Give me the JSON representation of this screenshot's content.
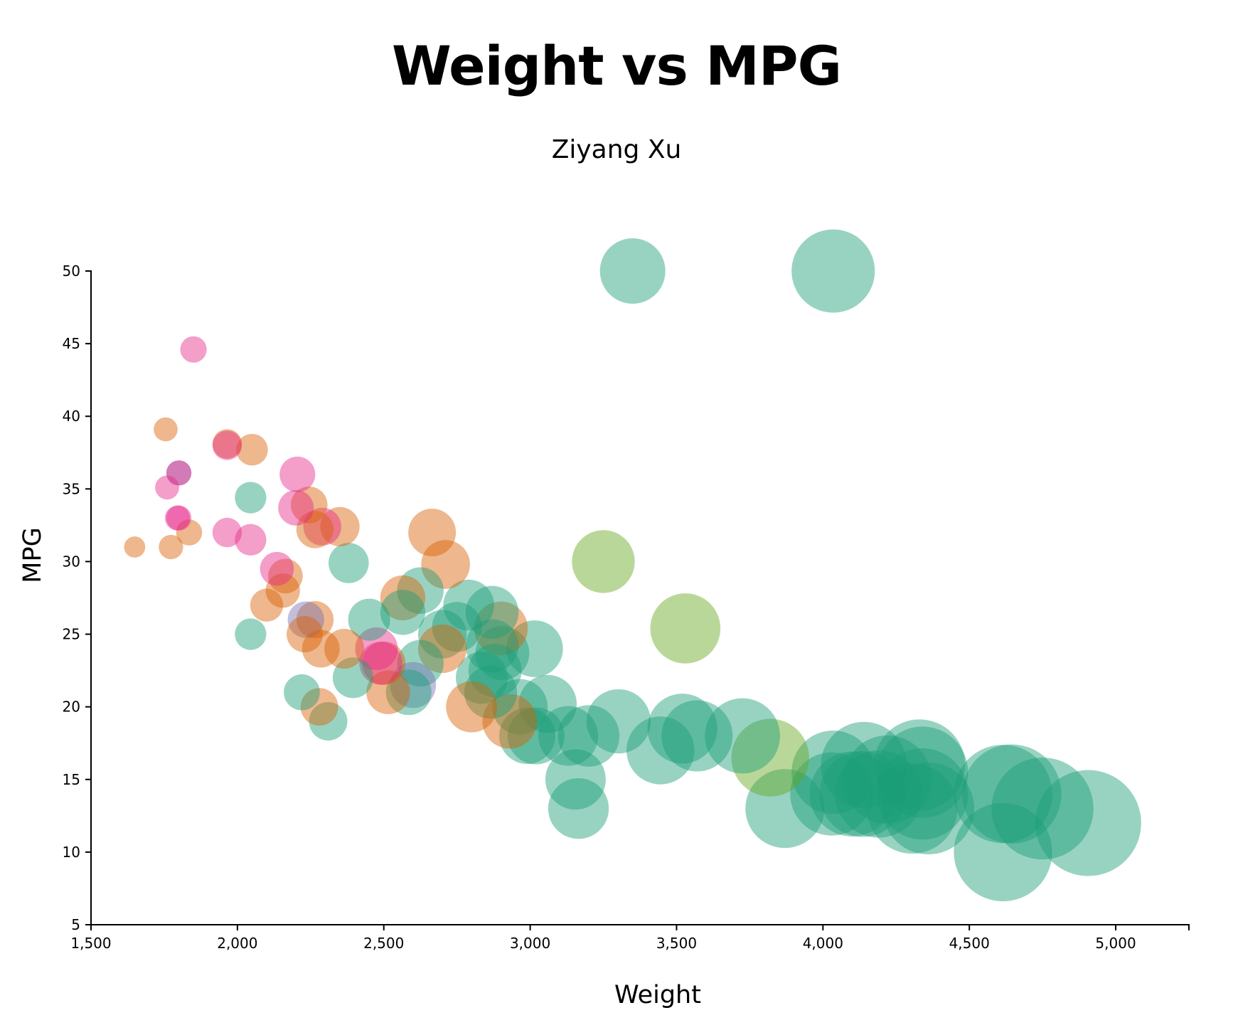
{
  "chart_data": {
    "type": "scatter",
    "title": "Weight vs MPG",
    "subtitle": "Ziyang Xu",
    "xlabel": "Weight",
    "ylabel": "MPG",
    "xlim": [
      1500,
      5250
    ],
    "ylim": [
      5,
      50
    ],
    "x_ticks": [
      1500,
      2000,
      2500,
      3000,
      3500,
      4000,
      4500,
      5000
    ],
    "y_ticks": [
      5,
      10,
      15,
      20,
      25,
      30,
      35,
      40,
      45,
      50
    ],
    "x_tick_labels": [
      "1,500",
      "2,000",
      "2,500",
      "3,000",
      "3,500",
      "4,000",
      "4,500",
      "5,000"
    ],
    "y_tick_labels": [
      "5",
      "10",
      "15",
      "20",
      "25",
      "30",
      "35",
      "40",
      "45",
      "50"
    ],
    "grid": false,
    "legend": "none",
    "bubble_size_encodes": "weight",
    "colors": {
      "green": "#1b9e77",
      "orange": "#d95f02",
      "purple": "#7570b3",
      "pink": "#e7298a",
      "lime": "#66a61e"
    },
    "points": [
      {
        "x": 3350,
        "y": 50,
        "c": "green"
      },
      {
        "x": 4035,
        "y": 50,
        "c": "green"
      },
      {
        "x": 1850,
        "y": 44.6,
        "c": "pink"
      },
      {
        "x": 1755,
        "y": 39.1,
        "c": "orange"
      },
      {
        "x": 1965,
        "y": 38.1,
        "c": "orange"
      },
      {
        "x": 1965,
        "y": 38,
        "c": "pink"
      },
      {
        "x": 2050,
        "y": 37.7,
        "c": "orange"
      },
      {
        "x": 1800,
        "y": 36.1,
        "c": "purple"
      },
      {
        "x": 1800,
        "y": 36.1,
        "c": "pink"
      },
      {
        "x": 2205,
        "y": 36,
        "c": "pink"
      },
      {
        "x": 1760,
        "y": 35.1,
        "c": "pink"
      },
      {
        "x": 2045,
        "y": 34.4,
        "c": "green"
      },
      {
        "x": 2245,
        "y": 33.9,
        "c": "orange"
      },
      {
        "x": 2200,
        "y": 33.7,
        "c": "pink"
      },
      {
        "x": 1795,
        "y": 33,
        "c": "pink"
      },
      {
        "x": 1800,
        "y": 33,
        "c": "pink"
      },
      {
        "x": 2350,
        "y": 32.4,
        "c": "orange"
      },
      {
        "x": 2290,
        "y": 32.4,
        "c": "pink"
      },
      {
        "x": 2265,
        "y": 32.2,
        "c": "orange"
      },
      {
        "x": 1835,
        "y": 32,
        "c": "orange"
      },
      {
        "x": 1965,
        "y": 32,
        "c": "pink"
      },
      {
        "x": 2665,
        "y": 32,
        "c": "orange"
      },
      {
        "x": 2045,
        "y": 31.5,
        "c": "pink"
      },
      {
        "x": 1649,
        "y": 31,
        "c": "orange"
      },
      {
        "x": 1773,
        "y": 31,
        "c": "orange"
      },
      {
        "x": 3250,
        "y": 30,
        "c": "lime"
      },
      {
        "x": 2380,
        "y": 29.9,
        "c": "green"
      },
      {
        "x": 2711,
        "y": 29.8,
        "c": "orange"
      },
      {
        "x": 2135,
        "y": 29.5,
        "c": "pink"
      },
      {
        "x": 2164,
        "y": 29,
        "c": "orange"
      },
      {
        "x": 2155,
        "y": 28,
        "c": "orange"
      },
      {
        "x": 2625,
        "y": 28,
        "c": "green"
      },
      {
        "x": 2565,
        "y": 27.5,
        "c": "orange"
      },
      {
        "x": 2100,
        "y": 27,
        "c": "orange"
      },
      {
        "x": 2790,
        "y": 27,
        "c": "green"
      },
      {
        "x": 2870,
        "y": 26.5,
        "c": "green"
      },
      {
        "x": 2565,
        "y": 26.5,
        "c": "green"
      },
      {
        "x": 2450,
        "y": 26,
        "c": "green"
      },
      {
        "x": 2234,
        "y": 26,
        "c": "purple"
      },
      {
        "x": 2265,
        "y": 26,
        "c": "orange"
      },
      {
        "x": 2750,
        "y": 25.5,
        "c": "green"
      },
      {
        "x": 2900,
        "y": 25.4,
        "c": "orange"
      },
      {
        "x": 3530,
        "y": 25.4,
        "c": "lime"
      },
      {
        "x": 2700,
        "y": 25,
        "c": "green"
      },
      {
        "x": 2045,
        "y": 25,
        "c": "green"
      },
      {
        "x": 2230,
        "y": 25,
        "c": "orange"
      },
      {
        "x": 2870,
        "y": 24.2,
        "c": "green"
      },
      {
        "x": 2475,
        "y": 24,
        "c": "pink"
      },
      {
        "x": 2365,
        "y": 24,
        "c": "orange"
      },
      {
        "x": 2285,
        "y": 24,
        "c": "orange"
      },
      {
        "x": 2700,
        "y": 24,
        "c": "orange"
      },
      {
        "x": 3015,
        "y": 24,
        "c": "green"
      },
      {
        "x": 2905,
        "y": 23.7,
        "c": "green"
      },
      {
        "x": 2500,
        "y": 23,
        "c": "orange"
      },
      {
        "x": 2490,
        "y": 23,
        "c": "pink"
      },
      {
        "x": 2625,
        "y": 23,
        "c": "green"
      },
      {
        "x": 2395,
        "y": 22,
        "c": "green"
      },
      {
        "x": 2835,
        "y": 22,
        "c": "green"
      },
      {
        "x": 2880,
        "y": 22.5,
        "c": "green"
      },
      {
        "x": 2600,
        "y": 21.5,
        "c": "purple"
      },
      {
        "x": 2585,
        "y": 21,
        "c": "green"
      },
      {
        "x": 2220,
        "y": 21,
        "c": "green"
      },
      {
        "x": 2515,
        "y": 21,
        "c": "orange"
      },
      {
        "x": 2865,
        "y": 21,
        "c": "green"
      },
      {
        "x": 3060,
        "y": 20.2,
        "c": "green"
      },
      {
        "x": 2800,
        "y": 20,
        "c": "orange"
      },
      {
        "x": 2280,
        "y": 20,
        "c": "orange"
      },
      {
        "x": 2965,
        "y": 20,
        "c": "green"
      },
      {
        "x": 3302,
        "y": 19,
        "c": "green"
      },
      {
        "x": 2310,
        "y": 19,
        "c": "green"
      },
      {
        "x": 2930,
        "y": 19,
        "c": "orange"
      },
      {
        "x": 3520,
        "y": 18.5,
        "c": "green"
      },
      {
        "x": 2990,
        "y": 18,
        "c": "green"
      },
      {
        "x": 3020,
        "y": 18,
        "c": "green"
      },
      {
        "x": 3130,
        "y": 18,
        "c": "green"
      },
      {
        "x": 3200,
        "y": 18,
        "c": "green"
      },
      {
        "x": 3570,
        "y": 18,
        "c": "green"
      },
      {
        "x": 3725,
        "y": 18,
        "c": "green"
      },
      {
        "x": 3445,
        "y": 17,
        "c": "green"
      },
      {
        "x": 3820,
        "y": 16.5,
        "c": "lime"
      },
      {
        "x": 4035,
        "y": 15.5,
        "c": "green"
      },
      {
        "x": 4140,
        "y": 16,
        "c": "green"
      },
      {
        "x": 4330,
        "y": 16,
        "c": "green"
      },
      {
        "x": 4220,
        "y": 15,
        "c": "green"
      },
      {
        "x": 4340,
        "y": 15.5,
        "c": "green"
      },
      {
        "x": 3155,
        "y": 15,
        "c": "green"
      },
      {
        "x": 4100,
        "y": 14,
        "c": "green"
      },
      {
        "x": 4135,
        "y": 14,
        "c": "green"
      },
      {
        "x": 4030,
        "y": 14,
        "c": "green"
      },
      {
        "x": 4190,
        "y": 14,
        "c": "green"
      },
      {
        "x": 4615,
        "y": 14,
        "c": "green"
      },
      {
        "x": 4645,
        "y": 14,
        "c": "green"
      },
      {
        "x": 4340,
        "y": 14,
        "c": "green"
      },
      {
        "x": 4305,
        "y": 13,
        "c": "green"
      },
      {
        "x": 4360,
        "y": 13,
        "c": "green"
      },
      {
        "x": 4750,
        "y": 13,
        "c": "green"
      },
      {
        "x": 3870,
        "y": 13,
        "c": "green"
      },
      {
        "x": 3165,
        "y": 13,
        "c": "green"
      },
      {
        "x": 4906,
        "y": 12,
        "c": "green"
      },
      {
        "x": 4615,
        "y": 10,
        "c": "green"
      }
    ]
  }
}
